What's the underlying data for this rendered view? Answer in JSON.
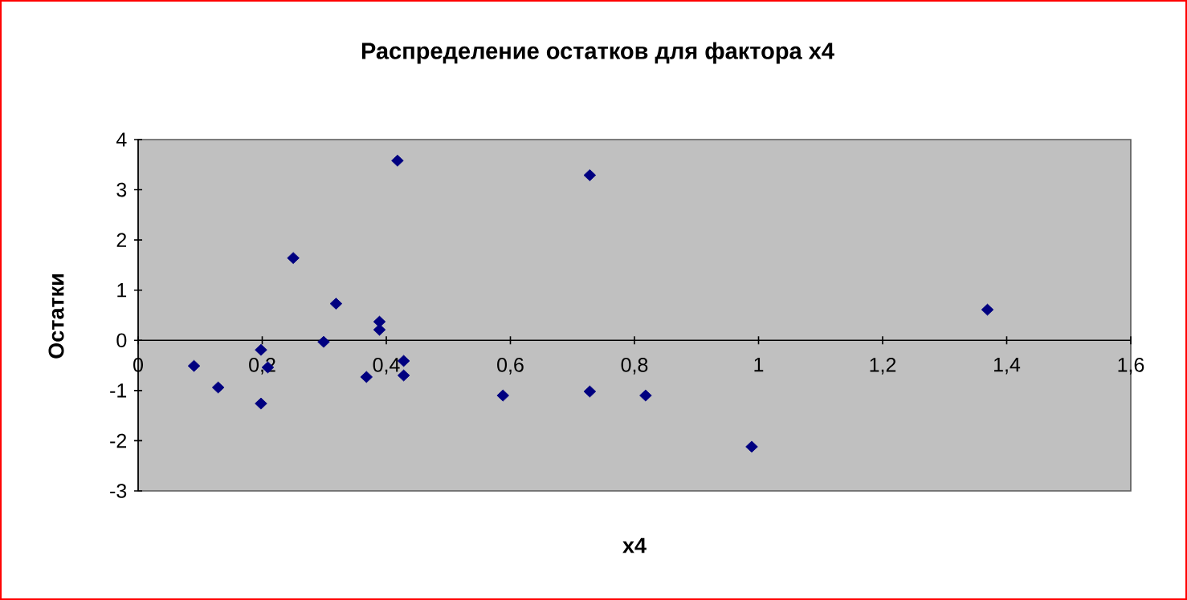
{
  "chart_data": {
    "type": "scatter",
    "title": "Распределение остатков для фактора x4",
    "xlabel": "x4",
    "ylabel": "Остатки",
    "x": [
      0.09,
      0.129,
      0.198,
      0.209,
      0.198,
      0.25,
      0.319,
      0.299,
      0.389,
      0.389,
      0.368,
      0.428,
      0.428,
      0.418,
      0.588,
      0.728,
      0.728,
      0.818,
      0.989,
      1.369
    ],
    "values": [
      -0.51,
      -0.94,
      -0.19,
      -0.54,
      -1.26,
      1.64,
      0.73,
      -0.03,
      0.37,
      0.21,
      -0.73,
      -0.41,
      -0.7,
      3.58,
      -1.1,
      3.29,
      -1.02,
      -1.1,
      -2.12,
      0.61
    ],
    "color": "#000080",
    "marker": "diamond",
    "xlim": [
      0,
      1.6
    ],
    "xticks": [
      {
        "value": 0,
        "label": "0"
      },
      {
        "value": 0.2,
        "label": "0,2"
      },
      {
        "value": 0.4,
        "label": "0,4"
      },
      {
        "value": 0.6,
        "label": "0,6"
      },
      {
        "value": 0.8,
        "label": "0,8"
      },
      {
        "value": 1,
        "label": "1"
      },
      {
        "value": 1.2,
        "label": "1,2"
      },
      {
        "value": 1.4,
        "label": "1,4"
      },
      {
        "value": 1.6,
        "label": "1,6"
      }
    ],
    "ylim": [
      -3,
      4
    ],
    "yticks": [
      -3,
      -2,
      -1,
      0,
      1,
      2,
      3,
      4
    ]
  }
}
